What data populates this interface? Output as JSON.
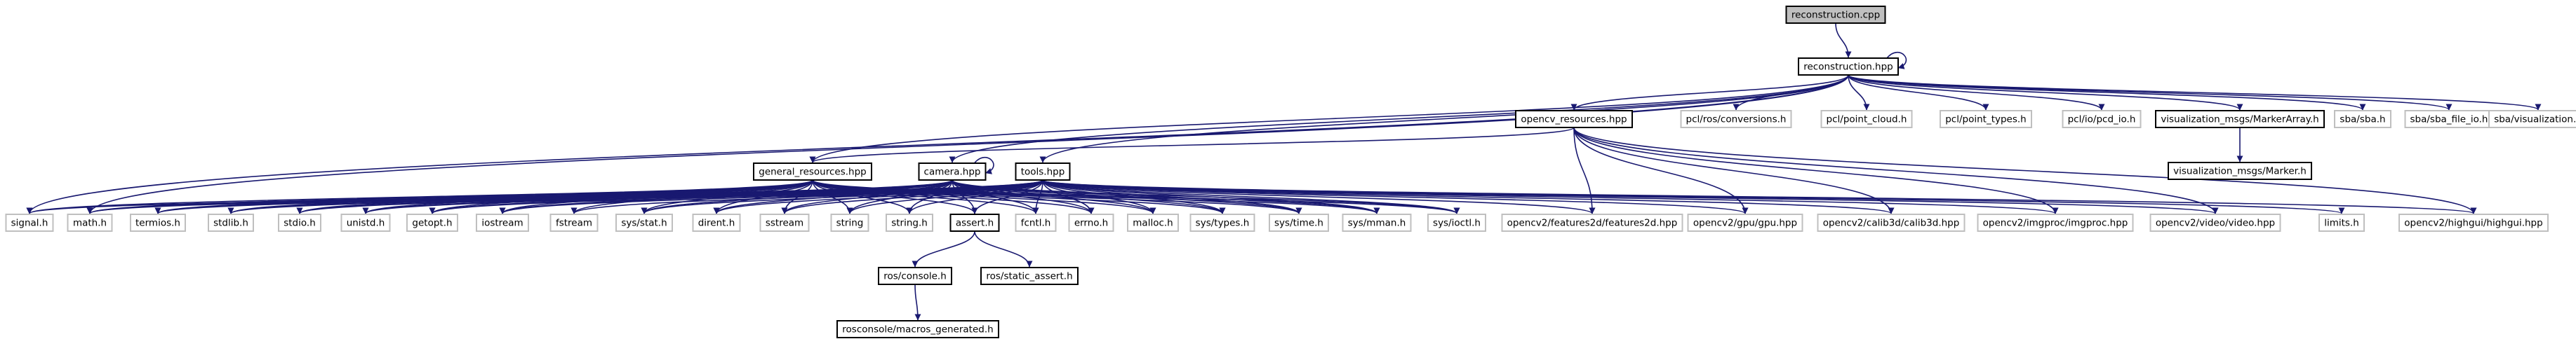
{
  "colors": {
    "edge": "#191970",
    "box_border_file": "#000000",
    "box_border_external": "#bfbfbf",
    "root_fill": "#bfbfbf",
    "box_fill": "#ffffff",
    "text": "#000000"
  },
  "nodes": [
    {
      "id": "reconstruction_cpp",
      "label": "reconstruction.cpp",
      "kind": "root"
    },
    {
      "id": "reconstruction_hpp",
      "label": "reconstruction.hpp",
      "kind": "file"
    },
    {
      "id": "opencv_resources_hpp",
      "label": "opencv_resources.hpp",
      "kind": "file"
    },
    {
      "id": "pcl_ros_conversions_h",
      "label": "pcl/ros/conversions.h",
      "kind": "external"
    },
    {
      "id": "pcl_point_cloud_h",
      "label": "pcl/point_cloud.h",
      "kind": "external"
    },
    {
      "id": "pcl_point_types_h",
      "label": "pcl/point_types.h",
      "kind": "external"
    },
    {
      "id": "pcl_io_pcd_io_h",
      "label": "pcl/io/pcd_io.h",
      "kind": "external"
    },
    {
      "id": "vis_marker_array_h",
      "label": "visualization_msgs/MarkerArray.h",
      "kind": "file"
    },
    {
      "id": "sba_sba_h",
      "label": "sba/sba.h",
      "kind": "external"
    },
    {
      "id": "sba_sba_file_io_h",
      "label": "sba/sba_file_io.h",
      "kind": "external"
    },
    {
      "id": "sba_visualization_h",
      "label": "sba/visualization.h",
      "kind": "external"
    },
    {
      "id": "vis_marker_h",
      "label": "visualization_msgs/Marker.h",
      "kind": "file"
    },
    {
      "id": "general_resources_hpp",
      "label": "general_resources.hpp",
      "kind": "file"
    },
    {
      "id": "camera_hpp",
      "label": "camera.hpp",
      "kind": "file"
    },
    {
      "id": "tools_hpp",
      "label": "tools.hpp",
      "kind": "file"
    },
    {
      "id": "signal_h",
      "label": "signal.h",
      "kind": "external"
    },
    {
      "id": "math_h",
      "label": "math.h",
      "kind": "external"
    },
    {
      "id": "termios_h",
      "label": "termios.h",
      "kind": "external"
    },
    {
      "id": "stdlib_h",
      "label": "stdlib.h",
      "kind": "external"
    },
    {
      "id": "stdio_h",
      "label": "stdio.h",
      "kind": "external"
    },
    {
      "id": "unistd_h",
      "label": "unistd.h",
      "kind": "external"
    },
    {
      "id": "getopt_h",
      "label": "getopt.h",
      "kind": "external"
    },
    {
      "id": "iostream",
      "label": "iostream",
      "kind": "external"
    },
    {
      "id": "fstream",
      "label": "fstream",
      "kind": "external"
    },
    {
      "id": "sys_stat_h",
      "label": "sys/stat.h",
      "kind": "external"
    },
    {
      "id": "dirent_h",
      "label": "dirent.h",
      "kind": "external"
    },
    {
      "id": "sstream",
      "label": "sstream",
      "kind": "external"
    },
    {
      "id": "string",
      "label": "string",
      "kind": "external"
    },
    {
      "id": "string_h",
      "label": "string.h",
      "kind": "external"
    },
    {
      "id": "assert_h",
      "label": "assert.h",
      "kind": "file"
    },
    {
      "id": "fcntl_h",
      "label": "fcntl.h",
      "kind": "external"
    },
    {
      "id": "errno_h",
      "label": "errno.h",
      "kind": "external"
    },
    {
      "id": "malloc_h",
      "label": "malloc.h",
      "kind": "external"
    },
    {
      "id": "sys_types_h",
      "label": "sys/types.h",
      "kind": "external"
    },
    {
      "id": "sys_time_h",
      "label": "sys/time.h",
      "kind": "external"
    },
    {
      "id": "sys_mman_h",
      "label": "sys/mman.h",
      "kind": "external"
    },
    {
      "id": "sys_ioctl_h",
      "label": "sys/ioctl.h",
      "kind": "external"
    },
    {
      "id": "features2d_hpp",
      "label": "opencv2/features2d/features2d.hpp",
      "kind": "external"
    },
    {
      "id": "gpu_hpp",
      "label": "opencv2/gpu/gpu.hpp",
      "kind": "external"
    },
    {
      "id": "calib3d_hpp",
      "label": "opencv2/calib3d/calib3d.hpp",
      "kind": "external"
    },
    {
      "id": "imgproc_hpp",
      "label": "opencv2/imgproc/imgproc.hpp",
      "kind": "external"
    },
    {
      "id": "video_hpp",
      "label": "opencv2/video/video.hpp",
      "kind": "external"
    },
    {
      "id": "limits_h",
      "label": "limits.h",
      "kind": "external"
    },
    {
      "id": "highgui_hpp",
      "label": "opencv2/highgui/highgui.hpp",
      "kind": "external"
    },
    {
      "id": "ros_console_h",
      "label": "ros/console.h",
      "kind": "file"
    },
    {
      "id": "ros_static_assert_h",
      "label": "ros/static_assert.h",
      "kind": "file"
    },
    {
      "id": "rosconsole_macros_h",
      "label": "rosconsole/macros_generated.h",
      "kind": "file"
    }
  ],
  "edges": [
    [
      "reconstruction_cpp",
      "reconstruction_hpp"
    ],
    [
      "reconstruction_hpp",
      "reconstruction_hpp"
    ],
    [
      "reconstruction_hpp",
      "opencv_resources_hpp"
    ],
    [
      "reconstruction_hpp",
      "pcl_ros_conversions_h"
    ],
    [
      "reconstruction_hpp",
      "pcl_point_cloud_h"
    ],
    [
      "reconstruction_hpp",
      "pcl_point_types_h"
    ],
    [
      "reconstruction_hpp",
      "pcl_io_pcd_io_h"
    ],
    [
      "reconstruction_hpp",
      "vis_marker_array_h"
    ],
    [
      "reconstruction_hpp",
      "sba_sba_h"
    ],
    [
      "reconstruction_hpp",
      "sba_sba_file_io_h"
    ],
    [
      "reconstruction_hpp",
      "sba_visualization_h"
    ],
    [
      "reconstruction_hpp",
      "general_resources_hpp"
    ],
    [
      "reconstruction_hpp",
      "camera_hpp"
    ],
    [
      "reconstruction_hpp",
      "tools_hpp"
    ],
    [
      "reconstruction_hpp",
      "signal_h"
    ],
    [
      "reconstruction_hpp",
      "math_h"
    ],
    [
      "vis_marker_array_h",
      "vis_marker_h"
    ],
    [
      "opencv_resources_hpp",
      "general_resources_hpp"
    ],
    [
      "opencv_resources_hpp",
      "features2d_hpp"
    ],
    [
      "opencv_resources_hpp",
      "gpu_hpp"
    ],
    [
      "opencv_resources_hpp",
      "calib3d_hpp"
    ],
    [
      "opencv_resources_hpp",
      "imgproc_hpp"
    ],
    [
      "opencv_resources_hpp",
      "video_hpp"
    ],
    [
      "opencv_resources_hpp",
      "highgui_hpp"
    ],
    [
      "general_resources_hpp",
      "signal_h"
    ],
    [
      "general_resources_hpp",
      "math_h"
    ],
    [
      "general_resources_hpp",
      "termios_h"
    ],
    [
      "general_resources_hpp",
      "stdlib_h"
    ],
    [
      "general_resources_hpp",
      "stdio_h"
    ],
    [
      "general_resources_hpp",
      "unistd_h"
    ],
    [
      "general_resources_hpp",
      "getopt_h"
    ],
    [
      "general_resources_hpp",
      "iostream"
    ],
    [
      "general_resources_hpp",
      "fstream"
    ],
    [
      "general_resources_hpp",
      "sys_stat_h"
    ],
    [
      "general_resources_hpp",
      "dirent_h"
    ],
    [
      "general_resources_hpp",
      "sstream"
    ],
    [
      "general_resources_hpp",
      "string"
    ],
    [
      "general_resources_hpp",
      "string_h"
    ],
    [
      "general_resources_hpp",
      "assert_h"
    ],
    [
      "general_resources_hpp",
      "fcntl_h"
    ],
    [
      "general_resources_hpp",
      "errno_h"
    ],
    [
      "general_resources_hpp",
      "malloc_h"
    ],
    [
      "general_resources_hpp",
      "sys_types_h"
    ],
    [
      "general_resources_hpp",
      "sys_time_h"
    ],
    [
      "general_resources_hpp",
      "sys_mman_h"
    ],
    [
      "general_resources_hpp",
      "sys_ioctl_h"
    ],
    [
      "camera_hpp",
      "camera_hpp"
    ],
    [
      "camera_hpp",
      "math_h"
    ],
    [
      "camera_hpp",
      "termios_h"
    ],
    [
      "camera_hpp",
      "stdlib_h"
    ],
    [
      "camera_hpp",
      "stdio_h"
    ],
    [
      "camera_hpp",
      "unistd_h"
    ],
    [
      "camera_hpp",
      "getopt_h"
    ],
    [
      "camera_hpp",
      "iostream"
    ],
    [
      "camera_hpp",
      "sys_stat_h"
    ],
    [
      "camera_hpp",
      "dirent_h"
    ],
    [
      "camera_hpp",
      "sstream"
    ],
    [
      "camera_hpp",
      "string"
    ],
    [
      "camera_hpp",
      "string_h"
    ],
    [
      "camera_hpp",
      "assert_h"
    ],
    [
      "camera_hpp",
      "fcntl_h"
    ],
    [
      "camera_hpp",
      "errno_h"
    ],
    [
      "camera_hpp",
      "malloc_h"
    ],
    [
      "camera_hpp",
      "sys_types_h"
    ],
    [
      "camera_hpp",
      "sys_time_h"
    ],
    [
      "camera_hpp",
      "sys_mman_h"
    ],
    [
      "camera_hpp",
      "sys_ioctl_h"
    ],
    [
      "tools_hpp",
      "signal_h"
    ],
    [
      "tools_hpp",
      "math_h"
    ],
    [
      "tools_hpp",
      "termios_h"
    ],
    [
      "tools_hpp",
      "stdlib_h"
    ],
    [
      "tools_hpp",
      "stdio_h"
    ],
    [
      "tools_hpp",
      "unistd_h"
    ],
    [
      "tools_hpp",
      "getopt_h"
    ],
    [
      "tools_hpp",
      "iostream"
    ],
    [
      "tools_hpp",
      "fstream"
    ],
    [
      "tools_hpp",
      "sys_stat_h"
    ],
    [
      "tools_hpp",
      "dirent_h"
    ],
    [
      "tools_hpp",
      "sstream"
    ],
    [
      "tools_hpp",
      "string"
    ],
    [
      "tools_hpp",
      "string_h"
    ],
    [
      "tools_hpp",
      "assert_h"
    ],
    [
      "tools_hpp",
      "fcntl_h"
    ],
    [
      "tools_hpp",
      "errno_h"
    ],
    [
      "tools_hpp",
      "malloc_h"
    ],
    [
      "tools_hpp",
      "sys_types_h"
    ],
    [
      "tools_hpp",
      "sys_time_h"
    ],
    [
      "tools_hpp",
      "sys_mman_h"
    ],
    [
      "tools_hpp",
      "sys_ioctl_h"
    ],
    [
      "tools_hpp",
      "features2d_hpp"
    ],
    [
      "tools_hpp",
      "gpu_hpp"
    ],
    [
      "tools_hpp",
      "calib3d_hpp"
    ],
    [
      "tools_hpp",
      "imgproc_hpp"
    ],
    [
      "tools_hpp",
      "video_hpp"
    ],
    [
      "tools_hpp",
      "limits_h"
    ],
    [
      "tools_hpp",
      "highgui_hpp"
    ],
    [
      "assert_h",
      "ros_console_h"
    ],
    [
      "assert_h",
      "ros_static_assert_h"
    ],
    [
      "ros_console_h",
      "rosconsole_macros_h"
    ]
  ]
}
